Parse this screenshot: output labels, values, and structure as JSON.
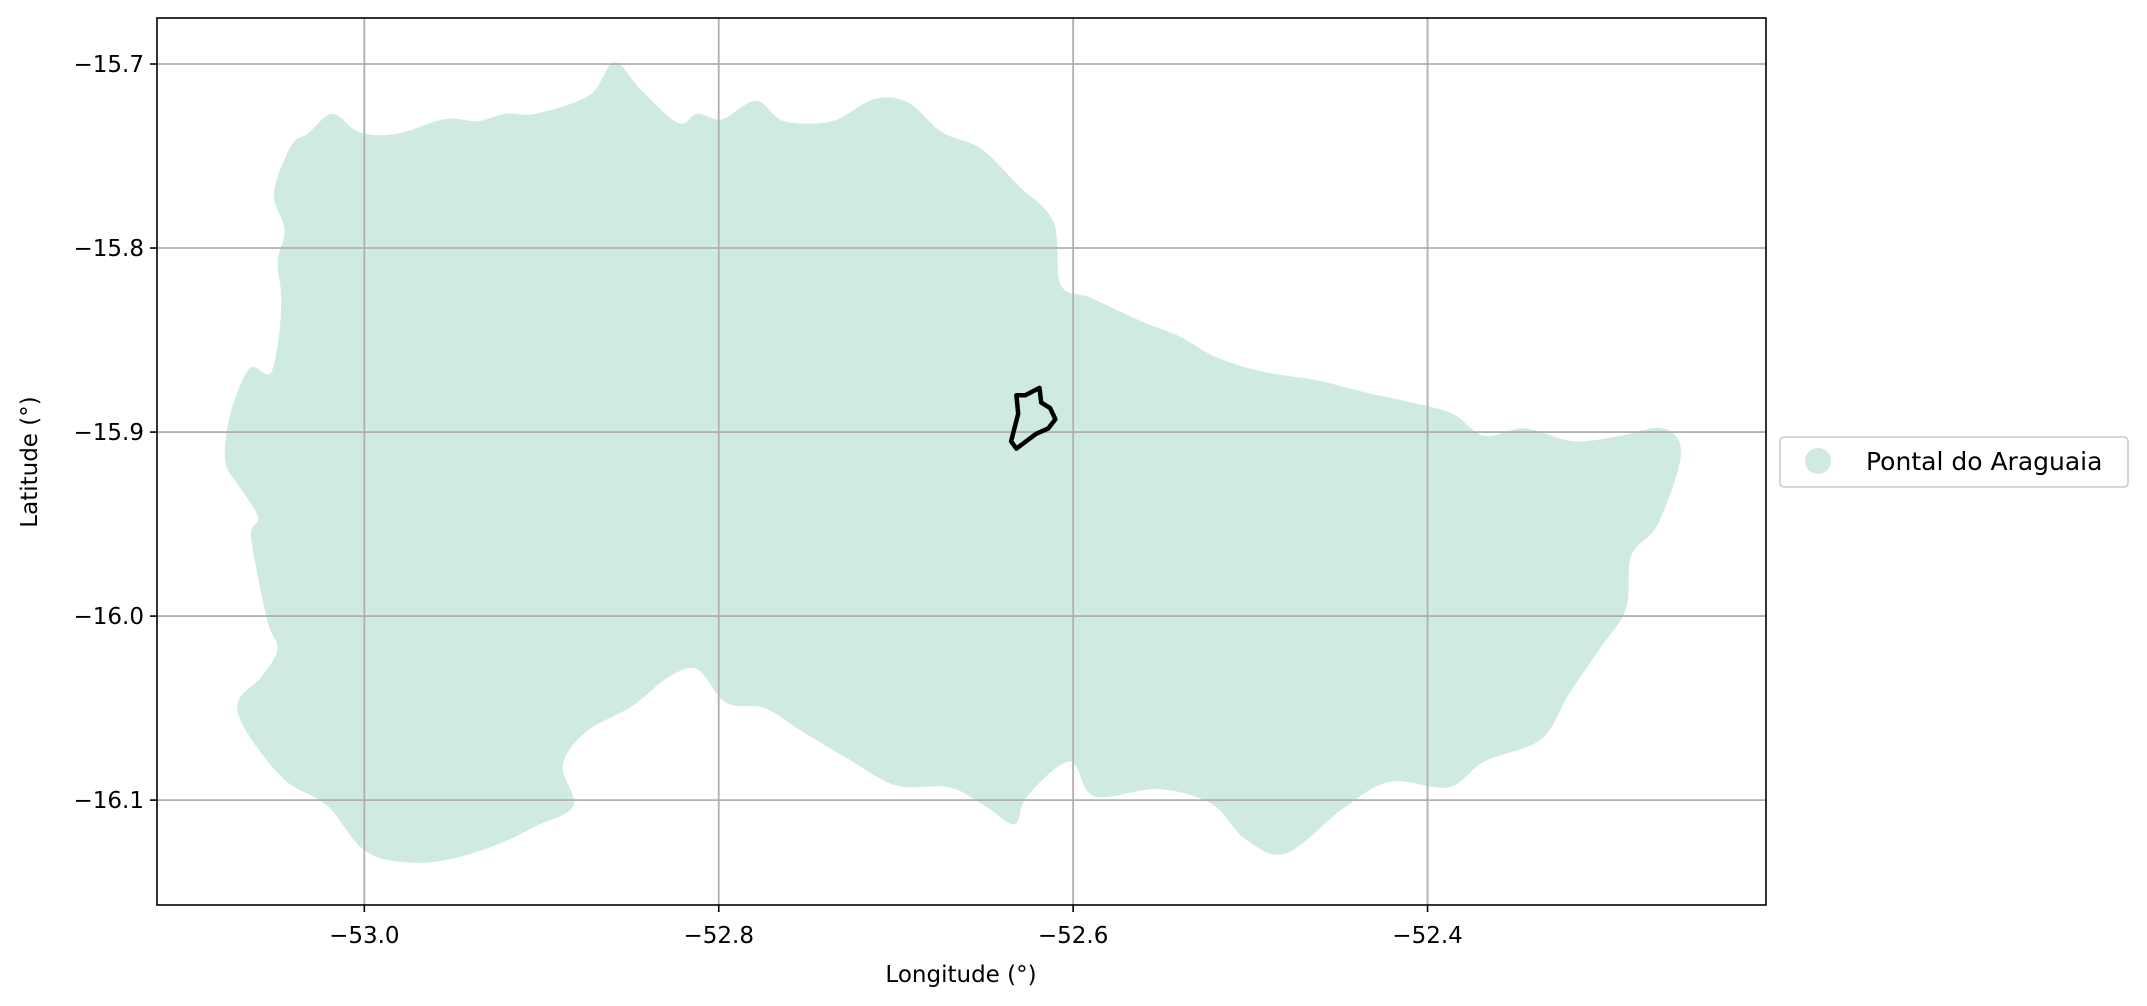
{
  "chart_data": {
    "type": "map",
    "xlabel": "Longitude (°)",
    "ylabel": "Latitude (°)",
    "xlim": [
      -53.117,
      -52.209
    ],
    "ylim": [
      -16.157,
      -15.675
    ],
    "grid": true,
    "legend_placement": "center-right",
    "x_ticks": [
      {
        "value": -53.0,
        "label": "−53.0"
      },
      {
        "value": -52.8,
        "label": "−52.8"
      },
      {
        "value": -52.6,
        "label": "−52.6"
      },
      {
        "value": -52.4,
        "label": "−52.4"
      }
    ],
    "y_ticks": [
      {
        "value": -15.7,
        "label": "−15.7"
      },
      {
        "value": -15.8,
        "label": "−15.8"
      },
      {
        "value": -15.9,
        "label": "−15.9"
      },
      {
        "value": -16.0,
        "label": "−16.0"
      },
      {
        "value": -16.1,
        "label": "−16.1"
      }
    ],
    "legend": [
      {
        "label": "Pontal do Araguaia",
        "color": "#cfebdf"
      }
    ],
    "region": {
      "name": "Pontal do Araguaia",
      "fill_color": "#cfebdf",
      "boundary": [
        [
          -53.078,
          -15.902
        ],
        [
          -53.073,
          -15.882
        ],
        [
          -53.064,
          -15.865
        ],
        [
          -53.053,
          -15.868
        ],
        [
          -53.048,
          -15.846
        ],
        [
          -53.047,
          -15.825
        ],
        [
          -53.049,
          -15.807
        ],
        [
          -53.045,
          -15.79
        ],
        [
          -53.051,
          -15.77
        ],
        [
          -53.041,
          -15.744
        ],
        [
          -53.032,
          -15.738
        ],
        [
          -53.018,
          -15.727
        ],
        [
          -53.003,
          -15.737
        ],
        [
          -52.982,
          -15.738
        ],
        [
          -52.955,
          -15.73
        ],
        [
          -52.936,
          -15.731
        ],
        [
          -52.92,
          -15.727
        ],
        [
          -52.903,
          -15.727
        ],
        [
          -52.873,
          -15.717
        ],
        [
          -52.859,
          -15.699
        ],
        [
          -52.844,
          -15.714
        ],
        [
          -52.823,
          -15.732
        ],
        [
          -52.812,
          -15.727
        ],
        [
          -52.798,
          -15.73
        ],
        [
          -52.779,
          -15.72
        ],
        [
          -52.763,
          -15.731
        ],
        [
          -52.736,
          -15.731
        ],
        [
          -52.712,
          -15.719
        ],
        [
          -52.693,
          -15.721
        ],
        [
          -52.674,
          -15.737
        ],
        [
          -52.652,
          -15.746
        ],
        [
          -52.631,
          -15.766
        ],
        [
          -52.611,
          -15.786
        ],
        [
          -52.607,
          -15.82
        ],
        [
          -52.59,
          -15.827
        ],
        [
          -52.561,
          -15.84
        ],
        [
          -52.54,
          -15.848
        ],
        [
          -52.52,
          -15.859
        ],
        [
          -52.494,
          -15.867
        ],
        [
          -52.462,
          -15.872
        ],
        [
          -52.437,
          -15.878
        ],
        [
          -52.409,
          -15.884
        ],
        [
          -52.386,
          -15.89
        ],
        [
          -52.368,
          -15.902
        ],
        [
          -52.345,
          -15.898
        ],
        [
          -52.318,
          -15.905
        ],
        [
          -52.291,
          -15.902
        ],
        [
          -52.267,
          -15.898
        ],
        [
          -52.257,
          -15.912
        ],
        [
          -52.27,
          -15.95
        ],
        [
          -52.285,
          -15.967
        ],
        [
          -52.288,
          -15.996
        ],
        [
          -52.303,
          -16.018
        ],
        [
          -52.32,
          -16.042
        ],
        [
          -52.336,
          -16.067
        ],
        [
          -52.368,
          -16.079
        ],
        [
          -52.388,
          -16.093
        ],
        [
          -52.421,
          -16.09
        ],
        [
          -52.447,
          -16.104
        ],
        [
          -52.48,
          -16.129
        ],
        [
          -52.503,
          -16.121
        ],
        [
          -52.522,
          -16.102
        ],
        [
          -52.552,
          -16.094
        ],
        [
          -52.588,
          -16.098
        ],
        [
          -52.602,
          -16.079
        ],
        [
          -52.626,
          -16.098
        ],
        [
          -52.633,
          -16.113
        ],
        [
          -52.65,
          -16.103
        ],
        [
          -52.67,
          -16.093
        ],
        [
          -52.7,
          -16.092
        ],
        [
          -52.728,
          -16.077
        ],
        [
          -52.754,
          -16.062
        ],
        [
          -52.774,
          -16.05
        ],
        [
          -52.796,
          -16.047
        ],
        [
          -52.812,
          -16.029
        ],
        [
          -52.828,
          -16.033
        ],
        [
          -52.849,
          -16.049
        ],
        [
          -52.875,
          -16.063
        ],
        [
          -52.888,
          -16.081
        ],
        [
          -52.882,
          -16.103
        ],
        [
          -52.903,
          -16.114
        ],
        [
          -52.922,
          -16.123
        ],
        [
          -52.947,
          -16.131
        ],
        [
          -52.972,
          -16.134
        ],
        [
          -52.999,
          -16.128
        ],
        [
          -53.021,
          -16.103
        ],
        [
          -53.045,
          -16.089
        ],
        [
          -53.067,
          -16.062
        ],
        [
          -53.071,
          -16.046
        ],
        [
          -53.058,
          -16.033
        ],
        [
          -53.049,
          -16.018
        ],
        [
          -53.054,
          -16.005
        ],
        [
          -53.06,
          -15.979
        ],
        [
          -53.064,
          -15.955
        ],
        [
          -53.06,
          -15.946
        ],
        [
          -53.071,
          -15.929
        ],
        [
          -53.078,
          -15.918
        ]
      ]
    },
    "outline": {
      "color": "#000000",
      "boundary": [
        [
          -52.627,
          -15.88
        ],
        [
          -52.619,
          -15.876
        ],
        [
          -52.618,
          -15.884
        ],
        [
          -52.613,
          -15.887
        ],
        [
          -52.61,
          -15.893
        ],
        [
          -52.614,
          -15.898
        ],
        [
          -52.621,
          -15.901
        ],
        [
          -52.632,
          -15.909
        ],
        [
          -52.635,
          -15.905
        ],
        [
          -52.631,
          -15.89
        ],
        [
          -52.632,
          -15.88
        ]
      ]
    }
  }
}
